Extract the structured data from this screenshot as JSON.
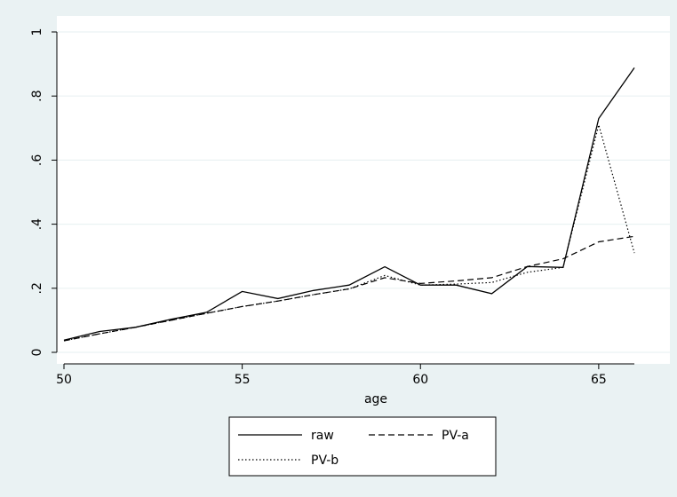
{
  "chart_data": {
    "type": "line",
    "title": "",
    "xlabel": "age",
    "ylabel": "",
    "xlim": [
      49.9,
      66.3
    ],
    "ylim": [
      0,
      1
    ],
    "xticks": [
      50,
      55,
      60,
      65
    ],
    "yticks": [
      0,
      0.2,
      0.4,
      0.6,
      0.8,
      1
    ],
    "xtick_labels": [
      "50",
      "55",
      "60",
      "65"
    ],
    "ytick_labels": [
      "0",
      ".2",
      ".4",
      ".6",
      ".8",
      "1"
    ],
    "grid": "horizontal",
    "legend_position": "bottom",
    "x": [
      50,
      51,
      52,
      53,
      54,
      55,
      56,
      57,
      58,
      59,
      60,
      61,
      62,
      63,
      64,
      65,
      66
    ],
    "series": [
      {
        "name": "raw",
        "style": "solid",
        "values": [
          0.038,
          0.065,
          0.078,
          0.103,
          0.125,
          0.19,
          0.168,
          0.193,
          0.21,
          0.267,
          0.21,
          0.21,
          0.183,
          0.268,
          0.265,
          0.73,
          0.888
        ]
      },
      {
        "name": "PV-a",
        "style": "dashed",
        "values": [
          0.036,
          0.058,
          0.078,
          0.1,
          0.122,
          0.143,
          0.16,
          0.18,
          0.198,
          0.233,
          0.215,
          0.223,
          0.233,
          0.268,
          0.292,
          0.345,
          0.362
        ]
      },
      {
        "name": "PV-b",
        "style": "dotted",
        "values": [
          0.036,
          0.058,
          0.078,
          0.1,
          0.122,
          0.143,
          0.16,
          0.18,
          0.198,
          0.24,
          0.21,
          0.213,
          0.218,
          0.25,
          0.265,
          0.71,
          0.31
        ]
      }
    ]
  },
  "colors": {
    "background": "#eaf2f3",
    "plot_area": "#ffffff",
    "grid": "#eaf2f3",
    "line": "#000000"
  }
}
